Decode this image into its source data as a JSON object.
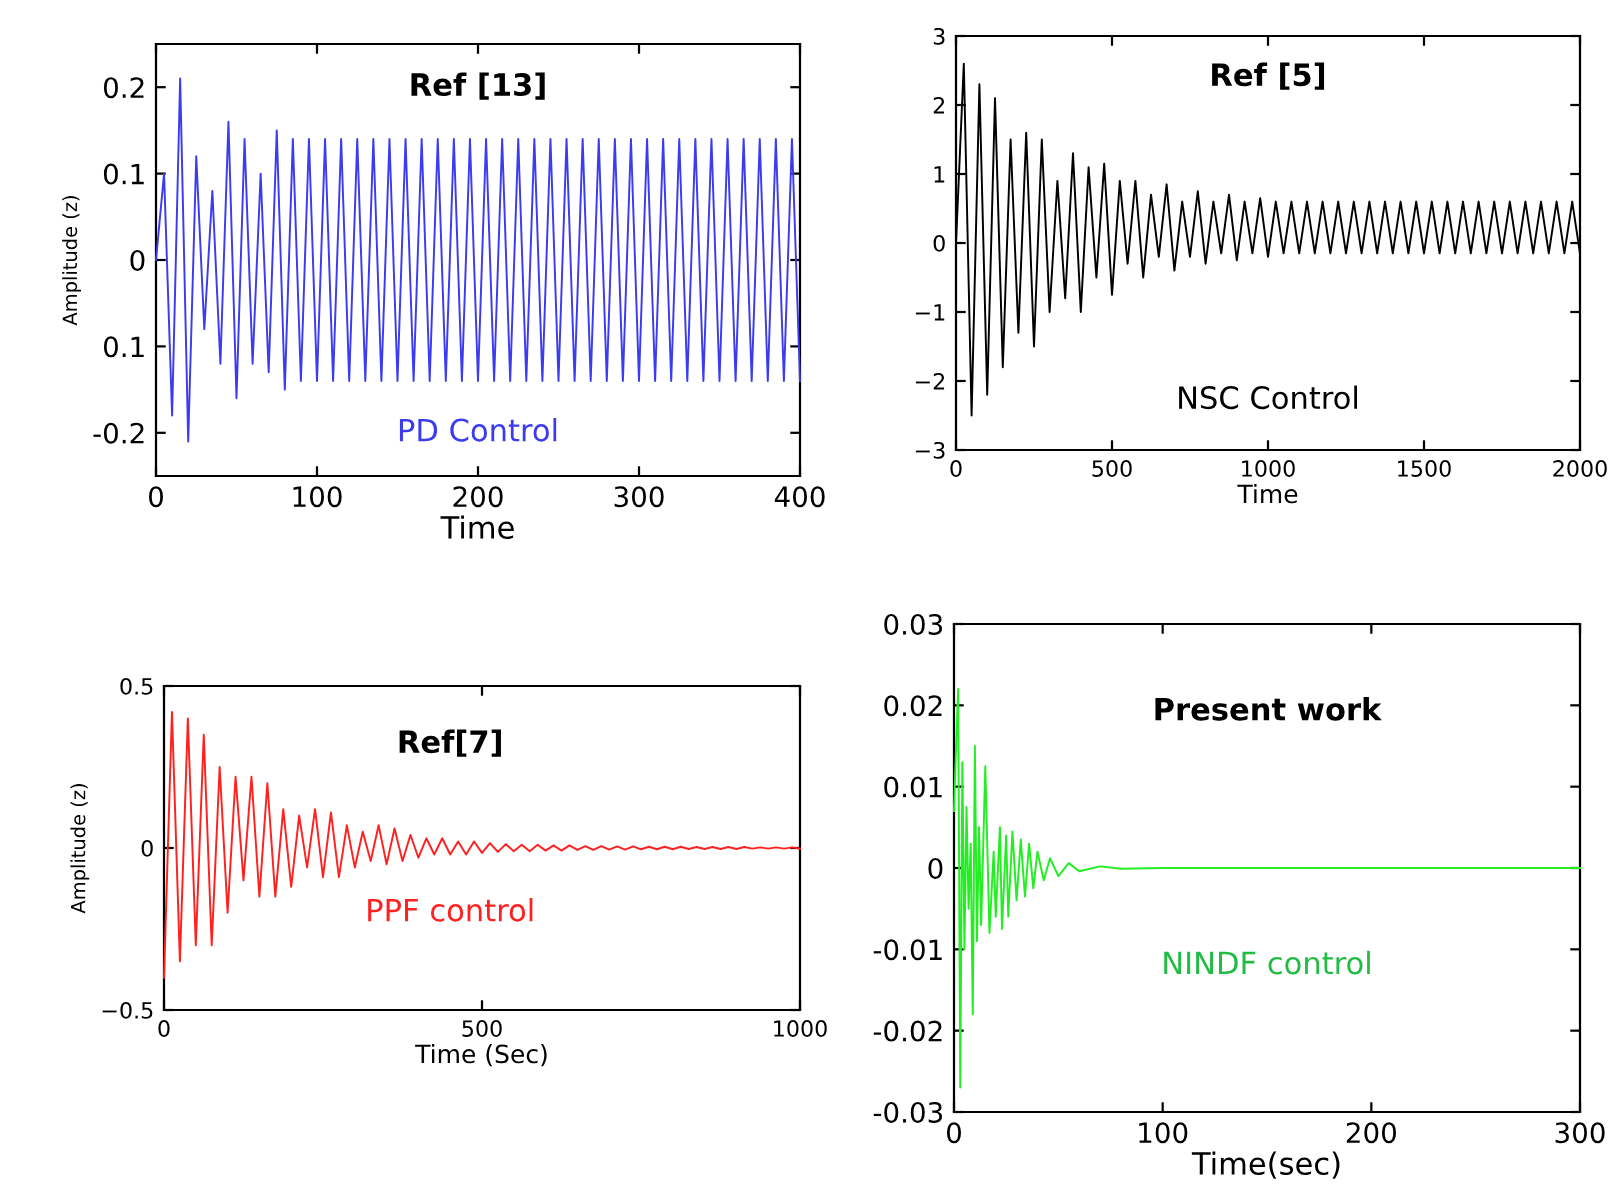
{
  "chart_data": [
    {
      "type": "line",
      "xlabel": "Time",
      "ylabel": "Amplitude (z)",
      "xlim": [
        0,
        400
      ],
      "ylim": [
        -0.25,
        0.25
      ],
      "xticks": [
        0,
        100,
        200,
        300,
        400
      ],
      "yticks": [
        -0.2,
        {
          "value": -0.1,
          "label": "0.1"
        },
        0,
        0.1,
        0.2
      ],
      "grid": false,
      "annotations": [
        "Ref [13]",
        "PD Control"
      ],
      "series": [
        {
          "color": "#3b3bf0",
          "x": [
            0,
            5,
            10,
            15,
            20,
            25,
            30,
            35,
            40,
            45,
            50,
            55,
            60,
            65,
            70,
            75,
            80,
            85,
            90,
            95,
            100,
            105,
            110,
            115,
            120,
            125,
            130,
            135,
            140,
            145,
            150,
            155,
            160,
            165,
            170,
            175,
            180,
            185,
            190,
            195,
            200,
            205,
            210,
            215,
            220,
            225,
            230,
            235,
            240,
            245,
            250,
            255,
            260,
            265,
            270,
            275,
            280,
            285,
            290,
            295,
            300,
            305,
            310,
            315,
            320,
            325,
            330,
            335,
            340,
            345,
            350,
            355,
            360,
            365,
            370,
            375,
            380,
            385,
            390,
            395,
            400
          ],
          "values": [
            0,
            0.1,
            -0.18,
            0.21,
            -0.21,
            0.12,
            -0.08,
            0.08,
            -0.12,
            0.16,
            -0.16,
            0.14,
            -0.12,
            0.1,
            -0.13,
            0.15,
            -0.15,
            0.14,
            -0.14,
            0.14,
            -0.14,
            0.14,
            -0.14,
            0.14,
            -0.14,
            0.14,
            -0.14,
            0.14,
            -0.14,
            0.14,
            -0.14,
            0.14,
            -0.14,
            0.14,
            -0.14,
            0.14,
            -0.14,
            0.14,
            -0.14,
            0.14,
            -0.14,
            0.14,
            -0.14,
            0.14,
            -0.14,
            0.14,
            -0.14,
            0.14,
            -0.14,
            0.14,
            -0.14,
            0.14,
            -0.14,
            0.14,
            -0.14,
            0.14,
            -0.14,
            0.14,
            -0.14,
            0.14,
            -0.14,
            0.14,
            -0.14,
            0.14,
            -0.14,
            0.14,
            -0.14,
            0.14,
            -0.14,
            0.14,
            -0.14,
            0.14,
            -0.14,
            0.14,
            -0.14,
            0.14,
            -0.14,
            0.14,
            -0.14,
            0.14,
            -0.14
          ]
        }
      ]
    },
    {
      "type": "line",
      "xlabel": "Time",
      "xlim": [
        0,
        2000
      ],
      "ylim": [
        -3,
        3
      ],
      "xticks": [
        0,
        500,
        1000,
        1500,
        2000
      ],
      "yticks": [
        {
          "value": -3,
          "label": "−3"
        },
        {
          "value": -2,
          "label": "−2"
        },
        {
          "value": -1,
          "label": "−1"
        },
        0,
        1,
        2,
        3
      ],
      "grid": false,
      "annotations": [
        "Ref [5]",
        "NSC Control"
      ],
      "series": [
        {
          "color": "#000000",
          "x": [
            0,
            25,
            50,
            75,
            100,
            125,
            150,
            175,
            200,
            225,
            250,
            275,
            300,
            325,
            350,
            375,
            400,
            425,
            450,
            475,
            500,
            525,
            550,
            575,
            600,
            625,
            650,
            675,
            700,
            725,
            750,
            775,
            800,
            825,
            850,
            875,
            900,
            925,
            950,
            975,
            1000,
            1025,
            1050,
            1075,
            1100,
            1125,
            1150,
            1175,
            1200,
            1225,
            1250,
            1275,
            1300,
            1325,
            1350,
            1375,
            1400,
            1425,
            1450,
            1475,
            1500,
            1525,
            1550,
            1575,
            1600,
            1625,
            1650,
            1675,
            1700,
            1725,
            1750,
            1775,
            1800,
            1825,
            1850,
            1875,
            1900,
            1925,
            1950,
            1975,
            2000
          ],
          "values": [
            0,
            2.6,
            -2.5,
            2.3,
            -2.2,
            2.1,
            -1.8,
            1.5,
            -1.3,
            1.6,
            -1.5,
            1.5,
            -1.0,
            0.9,
            -0.8,
            1.3,
            -1.0,
            1.1,
            -0.5,
            1.15,
            -0.75,
            0.9,
            -0.3,
            0.9,
            -0.5,
            0.7,
            -0.2,
            0.85,
            -0.4,
            0.6,
            -0.2,
            0.75,
            -0.3,
            0.6,
            -0.15,
            0.7,
            -0.25,
            0.6,
            -0.15,
            0.65,
            -0.2,
            0.6,
            -0.15,
            0.6,
            -0.15,
            0.6,
            -0.15,
            0.6,
            -0.15,
            0.6,
            -0.15,
            0.6,
            -0.15,
            0.6,
            -0.15,
            0.6,
            -0.15,
            0.6,
            -0.15,
            0.6,
            -0.15,
            0.6,
            -0.15,
            0.6,
            -0.15,
            0.6,
            -0.15,
            0.6,
            -0.15,
            0.6,
            -0.15,
            0.6,
            -0.15,
            0.6,
            -0.15,
            0.6,
            -0.15,
            0.6,
            -0.15,
            0.6,
            -0.15
          ]
        }
      ]
    },
    {
      "type": "line",
      "xlabel": "Time (Sec)",
      "ylabel": "Amplitude (z)",
      "xlim": [
        0,
        1000
      ],
      "ylim": [
        -0.5,
        0.5
      ],
      "xticks": [
        0,
        500,
        1000
      ],
      "yticks": [
        {
          "value": -0.5,
          "label": "−0.5"
        },
        0,
        0.5
      ],
      "grid": false,
      "annotations": [
        "Ref[7]",
        "PPF control"
      ],
      "series": [
        {
          "color": "#ff2020",
          "x": [
            0,
            12.5,
            25,
            37.5,
            50,
            62.5,
            75,
            87.5,
            100,
            112.5,
            125,
            137.5,
            150,
            162.5,
            175,
            187.5,
            200,
            212.5,
            225,
            237.5,
            250,
            262.5,
            275,
            287.5,
            300,
            312.5,
            325,
            337.5,
            350,
            362.5,
            375,
            387.5,
            400,
            412.5,
            425,
            437.5,
            450,
            462.5,
            475,
            487.5,
            500,
            512.5,
            525,
            537.5,
            550,
            562.5,
            575,
            587.5,
            600,
            612.5,
            625,
            637.5,
            650,
            662.5,
            675,
            687.5,
            700,
            712.5,
            725,
            737.5,
            750,
            762.5,
            775,
            787.5,
            800,
            812.5,
            825,
            837.5,
            850,
            862.5,
            875,
            887.5,
            900,
            912.5,
            925,
            937.5,
            950,
            962.5,
            975,
            987.5,
            1000
          ],
          "values": [
            -0.4,
            0.42,
            -0.35,
            0.4,
            -0.3,
            0.35,
            -0.3,
            0.25,
            -0.2,
            0.22,
            -0.1,
            0.22,
            -0.15,
            0.2,
            -0.15,
            0.12,
            -0.12,
            0.1,
            -0.06,
            0.12,
            -0.09,
            0.11,
            -0.09,
            0.07,
            -0.06,
            0.05,
            -0.04,
            0.07,
            -0.05,
            0.06,
            -0.04,
            0.04,
            -0.03,
            0.03,
            -0.02,
            0.03,
            -0.02,
            0.02,
            -0.02,
            0.02,
            -0.015,
            0.015,
            -0.012,
            0.012,
            -0.01,
            0.01,
            -0.01,
            0.01,
            -0.008,
            0.008,
            -0.008,
            0.008,
            -0.006,
            0.006,
            -0.006,
            0.006,
            -0.005,
            0.005,
            -0.005,
            0.005,
            -0.004,
            0.004,
            -0.004,
            0.004,
            -0.004,
            0.004,
            -0.003,
            0.003,
            -0.003,
            0.003,
            -0.003,
            0.003,
            -0.003,
            0.003,
            -0.002,
            0.002,
            -0.002,
            0.002,
            -0.002,
            0.002,
            -0.002
          ]
        }
      ]
    },
    {
      "type": "line",
      "xlabel": "Time(sec)",
      "xlim": [
        0,
        300
      ],
      "ylim": [
        -0.03,
        0.03
      ],
      "xticks": [
        0,
        100,
        200,
        300
      ],
      "yticks": [
        {
          "value": -0.03,
          "label": "-0.03"
        },
        {
          "value": -0.02,
          "label": "-0.02"
        },
        {
          "value": -0.01,
          "label": "-0.01"
        },
        0,
        0.01,
        0.02,
        0.03
      ],
      "grid": false,
      "annotations": [
        "Present work",
        "NINDF control"
      ],
      "series": [
        {
          "color": "#22ee22",
          "x": [
            0,
            1,
            2,
            3,
            4,
            5,
            6,
            7,
            8,
            9,
            10,
            11,
            12,
            13,
            15,
            17,
            19,
            20,
            22,
            23,
            25,
            26,
            28,
            30,
            32,
            34,
            36,
            38,
            40,
            43,
            46,
            50,
            55,
            60,
            70,
            80,
            100,
            150,
            200,
            300
          ],
          "values": [
            0.007,
            0.015,
            0.022,
            -0.027,
            0.013,
            -0.01,
            0.0075,
            -0.005,
            0.003,
            -0.018,
            0.015,
            -0.009,
            0.005,
            -0.007,
            0.0125,
            -0.008,
            0.002,
            -0.006,
            0.005,
            -0.0075,
            0.004,
            -0.006,
            0.0045,
            -0.004,
            0.0035,
            -0.0035,
            0.003,
            -0.0025,
            0.002,
            -0.0015,
            0.0012,
            -0.001,
            0.0006,
            -0.0004,
            0.0002,
            -0.0001,
            0,
            0,
            0,
            0
          ]
        }
      ]
    }
  ]
}
